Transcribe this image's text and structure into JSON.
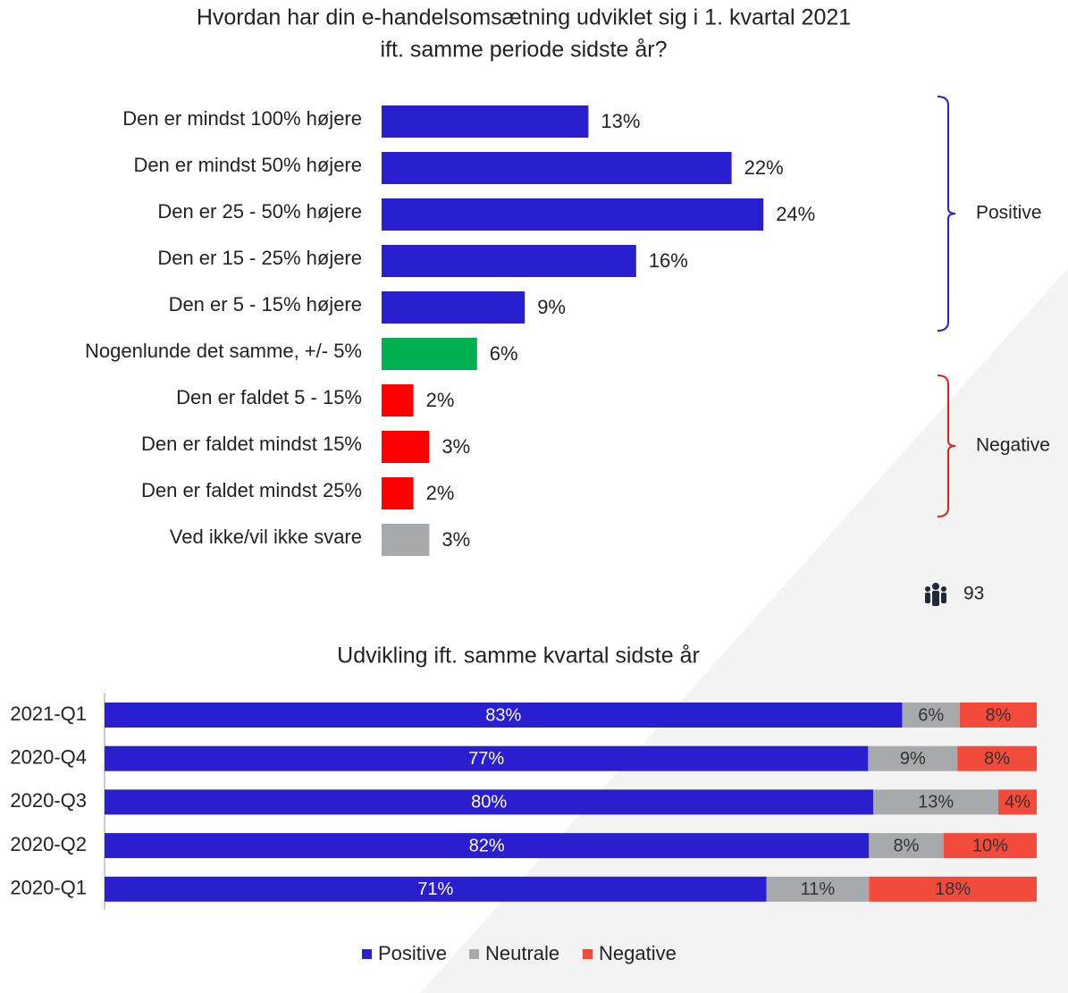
{
  "chart_data": [
    {
      "type": "hbar",
      "title": [
        "Hvordan har din e-handelsomsætning udviklet sig i 1. kvartal 2021",
        "ift. samme periode sidste år?"
      ],
      "categories": [
        "Den er mindst 100% højere",
        "Den er mindst 50% højere",
        "Den er 25 - 50% højere",
        "Den er 15 - 25% højere",
        "Den er 5 - 15% højere",
        "Nogenlunde det samme, +/- 5%",
        "Den er faldet 5 - 15%",
        "Den er faldet mindst 15%",
        "Den er faldet mindst 25%",
        "Ved ikke/vil ikke svare"
      ],
      "values": [
        13,
        22,
        24,
        16,
        9,
        6,
        2,
        3,
        2,
        3
      ],
      "value_labels": [
        "13%",
        "22%",
        "24%",
        "16%",
        "9%",
        "6%",
        "2%",
        "3%",
        "2%",
        "3%"
      ],
      "colors": [
        "#2a1fcf",
        "#2a1fcf",
        "#2a1fcf",
        "#2a1fcf",
        "#2a1fcf",
        "#00b050",
        "#ff0000",
        "#ff0000",
        "#ff0000",
        "#a6aaad"
      ],
      "brackets": [
        {
          "label": "Positive",
          "start": 0,
          "end": 4,
          "color": "#2a1fcf"
        },
        {
          "label": "Negative",
          "start": 6,
          "end": 8,
          "color": "#e02020"
        }
      ],
      "respondents": 93
    },
    {
      "type": "stacked_hbar_100",
      "title": "Udvikling ift. samme kvartal sidste år",
      "categories": [
        "2021-Q1",
        "2020-Q4",
        "2020-Q3",
        "2020-Q2",
        "2020-Q1"
      ],
      "series": [
        {
          "name": "Positive",
          "color": "#2a1fcf",
          "values": [
            83,
            77,
            80,
            82,
            71
          ],
          "value_labels": [
            "83%",
            "77%",
            "80%",
            "82%",
            "71%"
          ]
        },
        {
          "name": "Neutrale",
          "color": "#a6aaad",
          "values": [
            6,
            9,
            13,
            8,
            11
          ],
          "value_labels": [
            "6%",
            "9%",
            "13%",
            "8%",
            "11%"
          ]
        },
        {
          "name": "Negative",
          "color": "#f24b3b",
          "values": [
            8,
            8,
            4,
            10,
            18
          ],
          "value_labels": [
            "8%",
            "8%",
            "4%",
            "10%",
            "18%"
          ]
        }
      ],
      "legend": "bottom"
    }
  ]
}
